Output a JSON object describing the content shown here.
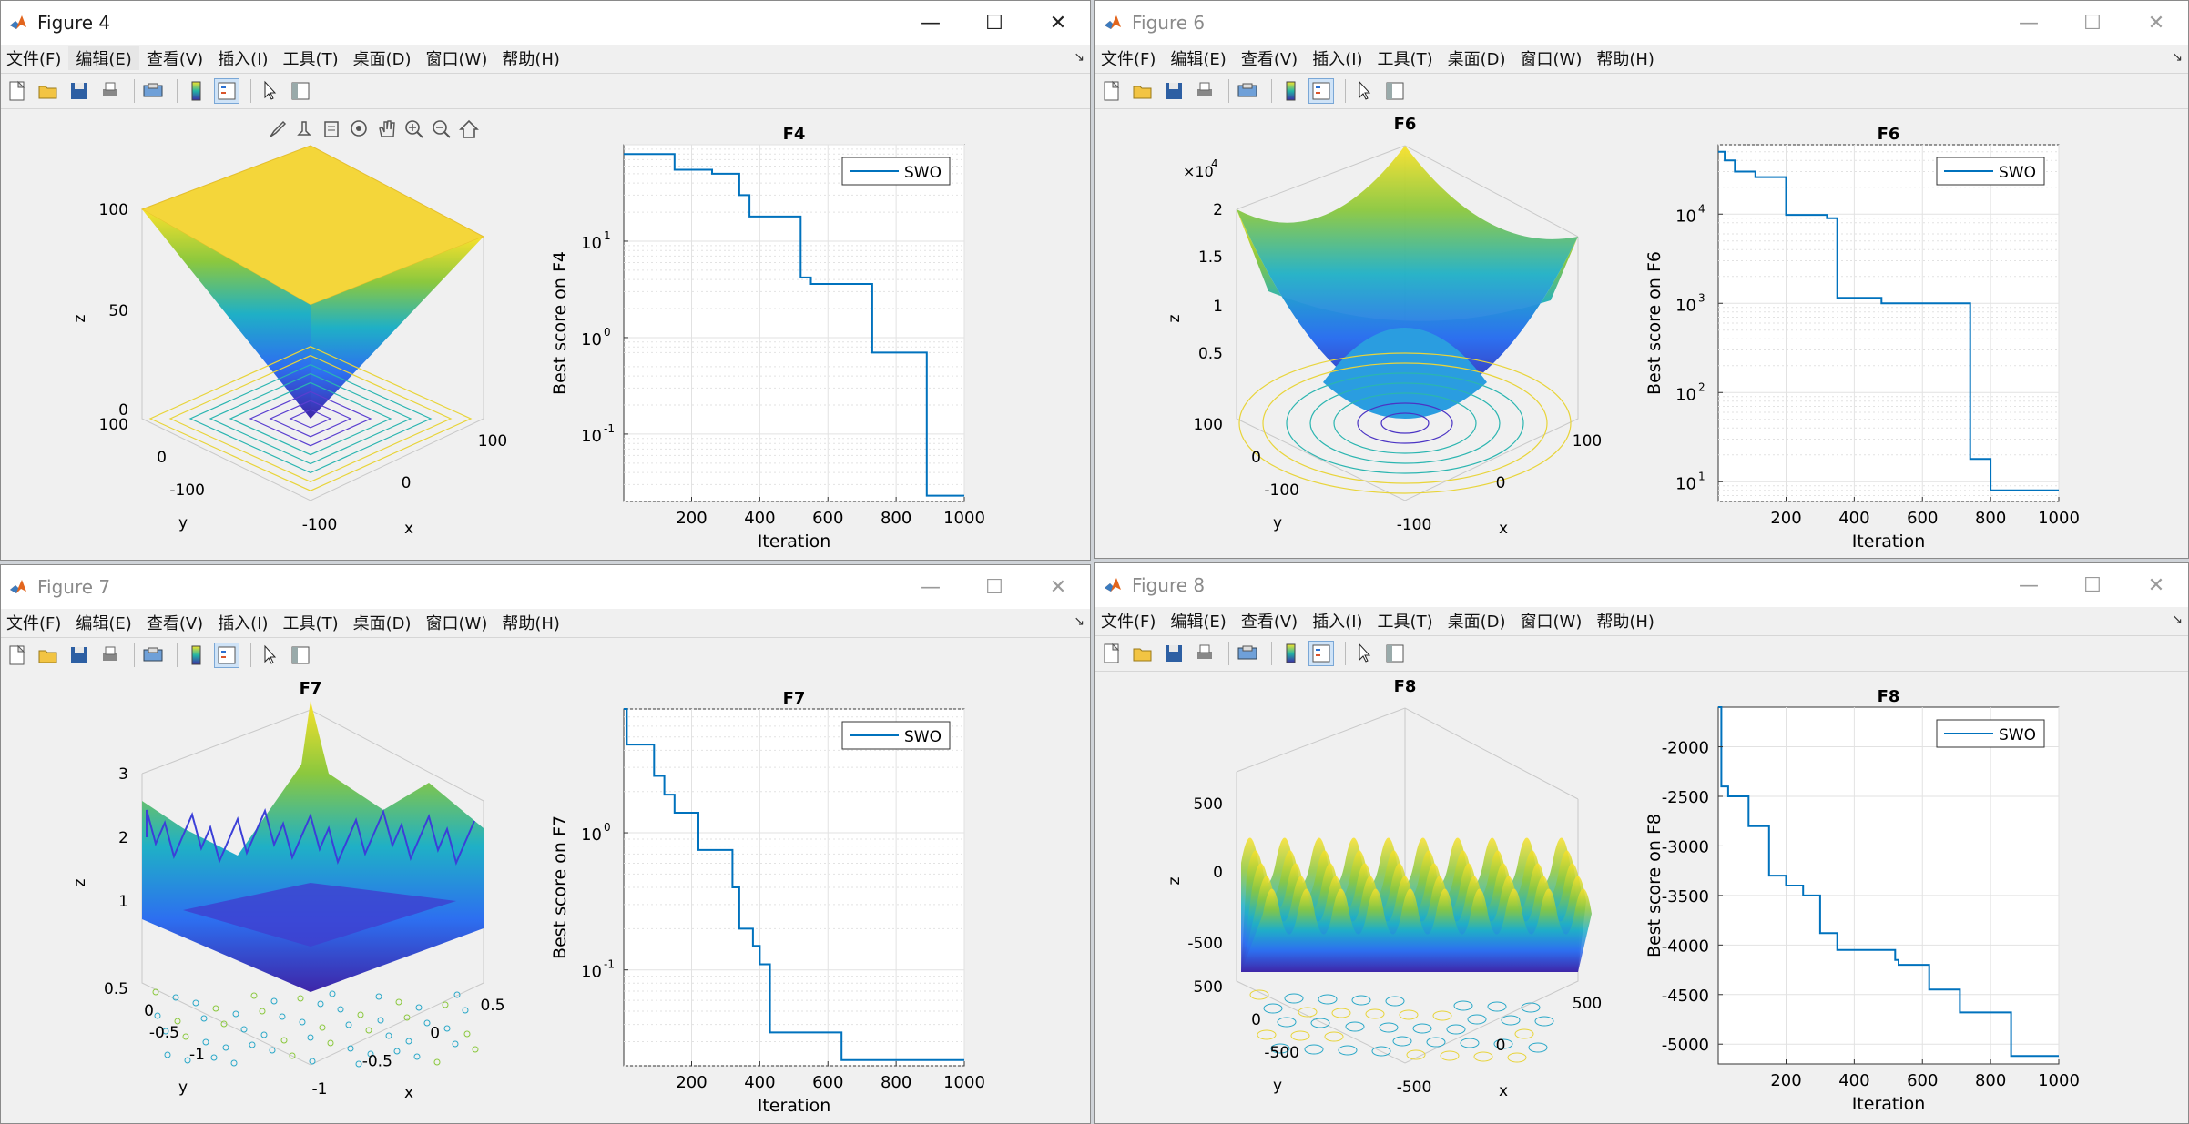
{
  "menu": [
    "文件(F)",
    "编辑(E)",
    "查看(V)",
    "插入(I)",
    "工具(T)",
    "桌面(D)",
    "窗口(W)",
    "帮助(H)"
  ],
  "window_controls": {
    "minimize": "—",
    "maximize": "☐",
    "close": "✕"
  },
  "figures": [
    {
      "title": "Figure 4",
      "active": true,
      "surface": {
        "title": "",
        "zlabel": "z",
        "ylabel": "y",
        "xlabel": "x",
        "zticks": [
          "100",
          "50",
          "0"
        ],
        "yticks": [
          "100",
          "0",
          "-100"
        ],
        "xticks": [
          "-100",
          "0",
          "100"
        ]
      },
      "conv": {
        "title": "F4",
        "ylabel": "Best score on F4",
        "xlabel": "Iteration",
        "legend": "SWO",
        "xticks": [
          "200",
          "400",
          "600",
          "800",
          "1000"
        ],
        "yticks": [
          {
            "base": "10",
            "exp": "1"
          },
          {
            "base": "10",
            "exp": "0"
          },
          {
            "base": "10",
            "exp": "-1"
          }
        ]
      }
    },
    {
      "title": "Figure 6",
      "active": false,
      "surface": {
        "title": "F6",
        "zlabel": "z",
        "ylabel": "y",
        "xlabel": "x",
        "zexp": "×10",
        "zexp_power": "4",
        "zticks": [
          "2",
          "1.5",
          "1",
          "0.5"
        ],
        "yticks": [
          "100",
          "0",
          "-100"
        ],
        "xticks": [
          "-100",
          "0",
          "100"
        ]
      },
      "conv": {
        "title": "F6",
        "ylabel": "Best score on F6",
        "xlabel": "Iteration",
        "legend": "SWO",
        "xticks": [
          "200",
          "400",
          "600",
          "800",
          "1000"
        ],
        "yticks": [
          {
            "base": "10",
            "exp": "4"
          },
          {
            "base": "10",
            "exp": "3"
          },
          {
            "base": "10",
            "exp": "2"
          },
          {
            "base": "10",
            "exp": "1"
          }
        ]
      }
    },
    {
      "title": "Figure 7",
      "active": false,
      "surface": {
        "title": "F7",
        "zlabel": "z",
        "ylabel": "y",
        "xlabel": "x",
        "zticks": [
          "3",
          "2",
          "1"
        ],
        "yticks": [
          "0.5",
          "0",
          "-0.5",
          "-1"
        ],
        "xticks": [
          "-1",
          "-0.5",
          "0",
          "0.5"
        ]
      },
      "conv": {
        "title": "F7",
        "ylabel": "Best score on F7",
        "xlabel": "Iteration",
        "legend": "SWO",
        "xticks": [
          "200",
          "400",
          "600",
          "800",
          "1000"
        ],
        "yticks": [
          {
            "base": "10",
            "exp": "0"
          },
          {
            "base": "10",
            "exp": "-1"
          }
        ]
      }
    },
    {
      "title": "Figure 8",
      "active": false,
      "surface": {
        "title": "F8",
        "zlabel": "z",
        "ylabel": "y",
        "xlabel": "x",
        "zticks": [
          "500",
          "0",
          "-500"
        ],
        "yticks": [
          "500",
          "0",
          "-500"
        ],
        "xticks": [
          "-500",
          "0",
          "500"
        ]
      },
      "conv": {
        "title": "F8",
        "ylabel": "Best score on F8",
        "xlabel": "Iteration",
        "legend": "SWO",
        "xticks": [
          "200",
          "400",
          "600",
          "800",
          "1000"
        ],
        "yticks": [
          "-2000",
          "-2500",
          "-3000",
          "-3500",
          "-4000",
          "-4500",
          "-5000"
        ]
      }
    }
  ],
  "chart_data": [
    {
      "type": "line",
      "title": "F4",
      "xlabel": "Iteration",
      "ylabel": "Best score on F4",
      "yscale": "log",
      "xlim": [
        1,
        1000
      ],
      "ylim": [
        0.02,
        100
      ],
      "grid": true,
      "legend_position": "top-right",
      "series": [
        {
          "name": "SWO",
          "x": [
            1,
            150,
            150,
            260,
            260,
            340,
            340,
            370,
            370,
            520,
            520,
            550,
            550,
            730,
            730,
            890,
            890,
            1000
          ],
          "y": [
            80,
            80,
            55,
            55,
            50,
            50,
            30,
            30,
            18,
            18,
            4.2,
            4.2,
            3.6,
            3.6,
            0.7,
            0.7,
            0.023,
            0.023
          ]
        }
      ]
    },
    {
      "type": "line",
      "title": "F6",
      "xlabel": "Iteration",
      "ylabel": "Best score on F6",
      "yscale": "log",
      "xlim": [
        1,
        1000
      ],
      "ylim": [
        6,
        60000
      ],
      "grid": true,
      "legend_position": "top-right",
      "series": [
        {
          "name": "SWO",
          "x": [
            1,
            20,
            20,
            50,
            50,
            110,
            110,
            200,
            200,
            320,
            320,
            350,
            350,
            480,
            480,
            740,
            740,
            800,
            800,
            1000
          ],
          "y": [
            50000,
            50000,
            40000,
            40000,
            30000,
            30000,
            26000,
            26000,
            9800,
            9800,
            9000,
            9000,
            1150,
            1150,
            1000,
            1000,
            18,
            18,
            8,
            8
          ]
        }
      ]
    },
    {
      "type": "line",
      "title": "F7",
      "xlabel": "Iteration",
      "ylabel": "Best score on F7",
      "yscale": "log",
      "xlim": [
        1,
        1000
      ],
      "ylim": [
        0.02,
        8
      ],
      "grid": true,
      "legend_position": "top-right",
      "series": [
        {
          "name": "SWO",
          "x": [
            1,
            10,
            10,
            90,
            90,
            120,
            120,
            150,
            150,
            220,
            220,
            320,
            320,
            340,
            340,
            380,
            380,
            400,
            400,
            430,
            430,
            640,
            640,
            1000
          ],
          "y": [
            8,
            8,
            4.4,
            4.4,
            2.6,
            2.6,
            1.9,
            1.9,
            1.4,
            1.4,
            0.75,
            0.75,
            0.4,
            0.4,
            0.2,
            0.2,
            0.15,
            0.15,
            0.11,
            0.11,
            0.035,
            0.035,
            0.022,
            0.022
          ]
        }
      ]
    },
    {
      "type": "line",
      "title": "F8",
      "xlabel": "Iteration",
      "ylabel": "Best score on F8",
      "xlim": [
        1,
        1000
      ],
      "ylim": [
        -5200,
        -1600
      ],
      "grid": true,
      "legend_position": "top-right",
      "series": [
        {
          "name": "SWO",
          "x": [
            1,
            10,
            10,
            30,
            30,
            90,
            90,
            150,
            150,
            200,
            200,
            250,
            250,
            300,
            300,
            350,
            350,
            520,
            520,
            530,
            530,
            620,
            620,
            710,
            710,
            860,
            860,
            1000
          ],
          "y": [
            -1600,
            -1600,
            -2400,
            -2400,
            -2500,
            -2500,
            -2800,
            -2800,
            -3300,
            -3300,
            -3400,
            -3400,
            -3500,
            -3500,
            -3880,
            -3880,
            -4050,
            -4050,
            -4150,
            -4150,
            -4200,
            -4200,
            -4450,
            -4450,
            -4680,
            -4680,
            -5120,
            -5120
          ]
        }
      ]
    }
  ]
}
